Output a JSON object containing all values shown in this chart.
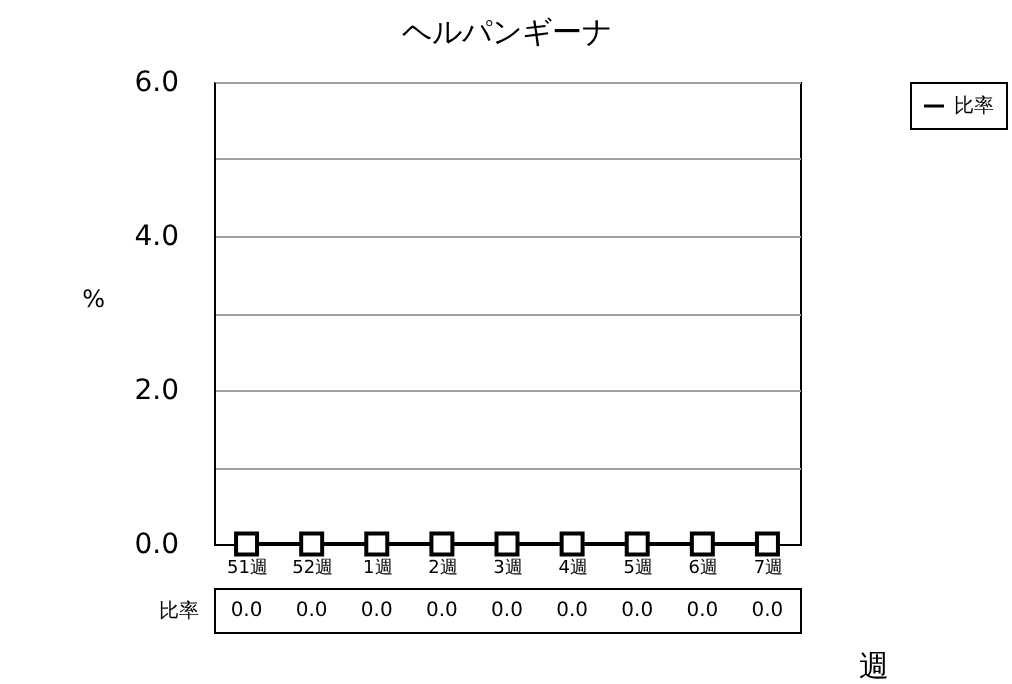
{
  "chart_data": {
    "type": "line",
    "title": "ヘルパンギーナ",
    "xlabel": "週",
    "ylabel": "%",
    "categories": [
      "51週",
      "52週",
      "1週",
      "2週",
      "3週",
      "4週",
      "5週",
      "6週",
      "7週"
    ],
    "series": [
      {
        "name": "比率",
        "color": "#000000",
        "values": [
          0,
          0,
          0,
          0,
          0,
          0,
          0,
          0,
          0
        ],
        "value_labels": [
          "0.0",
          "0.0",
          "0.0",
          "0.0",
          "0.0",
          "0.0",
          "0.0",
          "0.0",
          "0.0"
        ]
      }
    ],
    "ylim": [
      0,
      6
    ],
    "yticks": [
      {
        "value": 0,
        "label": "0.0"
      },
      {
        "value": 1,
        "label": null
      },
      {
        "value": 2,
        "label": "2.0"
      },
      {
        "value": 3,
        "label": null
      },
      {
        "value": 4,
        "label": "4.0"
      },
      {
        "value": 5,
        "label": null
      },
      {
        "value": 6,
        "label": "6.0"
      }
    ],
    "grid": "y",
    "legend": "top right",
    "marker": "square",
    "line_style": "solid"
  }
}
